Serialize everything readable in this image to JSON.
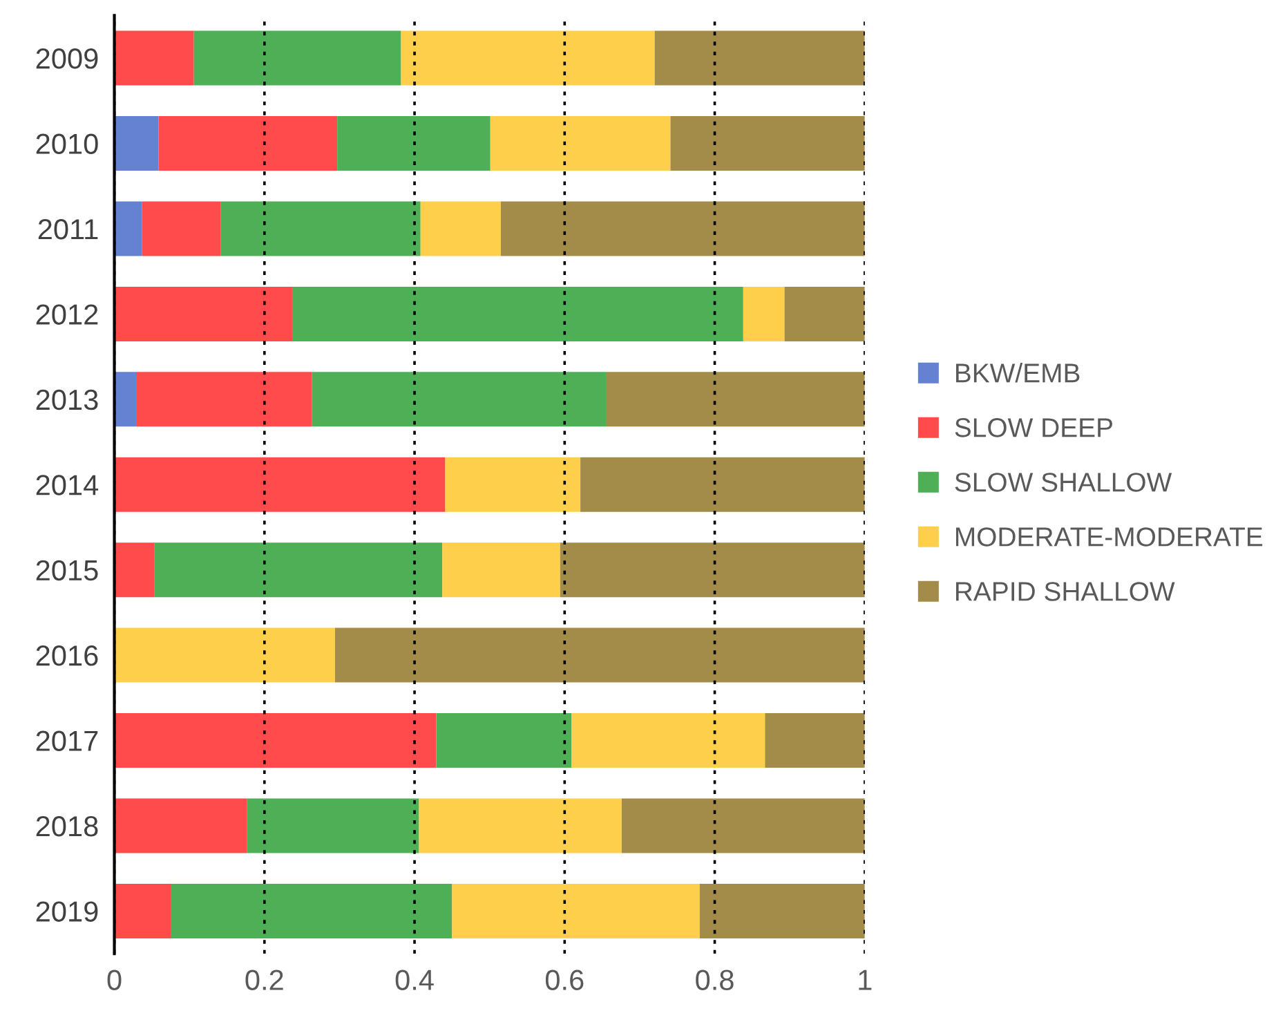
{
  "chart_data": {
    "type": "bar",
    "orientation": "horizontal",
    "stacked": true,
    "categories": [
      "2009",
      "2010",
      "2011",
      "2012",
      "2013",
      "2014",
      "2015",
      "2016",
      "2017",
      "2018",
      "2019"
    ],
    "series": [
      {
        "name": "BKW/EMB",
        "color": "#6582d2",
        "values": [
          null,
          0.059,
          0.037,
          null,
          0.029,
          null,
          null,
          null,
          null,
          null,
          null
        ]
      },
      {
        "name": "SLOW DEEP",
        "color": "#ff4b4b",
        "values": [
          0.106,
          0.238,
          0.105,
          0.237,
          0.234,
          0.441,
          0.053,
          null,
          0.429,
          0.177,
          0.075
        ]
      },
      {
        "name": "SLOW SHALLOW",
        "color": "#4eaf57",
        "values": [
          0.276,
          0.204,
          0.266,
          0.601,
          0.392,
          null,
          0.384,
          null,
          0.18,
          0.229,
          0.375
        ]
      },
      {
        "name": "MODERATE-MODERATE",
        "color": "#fdcf4a",
        "values": [
          0.338,
          0.24,
          0.107,
          0.055,
          null,
          0.18,
          0.157,
          0.294,
          0.258,
          0.27,
          0.33
        ]
      },
      {
        "name": "RAPID SHALLOW",
        "color": "#a38b4a",
        "values": [
          0.28,
          0.259,
          0.485,
          0.107,
          0.345,
          0.379,
          0.406,
          0.706,
          0.133,
          0.324,
          0.22
        ]
      }
    ],
    "xlim": [
      0,
      1
    ],
    "xticks": [
      0,
      0.2,
      0.4,
      0.6,
      0.8,
      1
    ],
    "grid": "x",
    "legend": "right"
  }
}
